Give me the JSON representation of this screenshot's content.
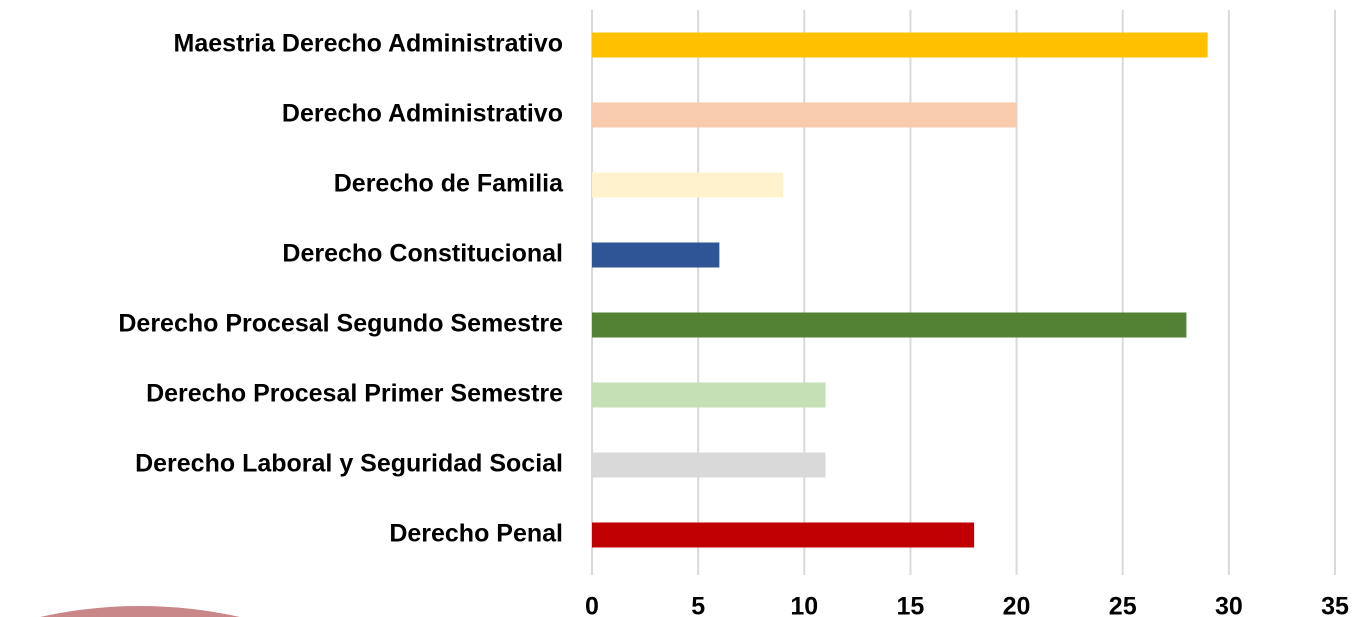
{
  "chart_data": {
    "type": "bar",
    "orientation": "horizontal",
    "categories": [
      "Maestria Derecho Administrativo",
      "Derecho Administrativo",
      "Derecho de Familia",
      "Derecho Constitucional",
      "Derecho Procesal Segundo Semestre",
      "Derecho Procesal Primer Semestre",
      "Derecho Laboral y Seguridad Social",
      "Derecho Penal"
    ],
    "values": [
      29,
      20,
      9,
      6,
      28,
      11,
      11,
      18
    ],
    "colors": [
      "#ffc000",
      "#f8cbad",
      "#fff2cc",
      "#2f5597",
      "#548235",
      "#c5e0b4",
      "#d9d9d9",
      "#c00000"
    ],
    "xlim": [
      0,
      35
    ],
    "xticks": [
      0,
      5,
      10,
      15,
      20,
      25,
      30,
      35
    ],
    "grid": true
  }
}
